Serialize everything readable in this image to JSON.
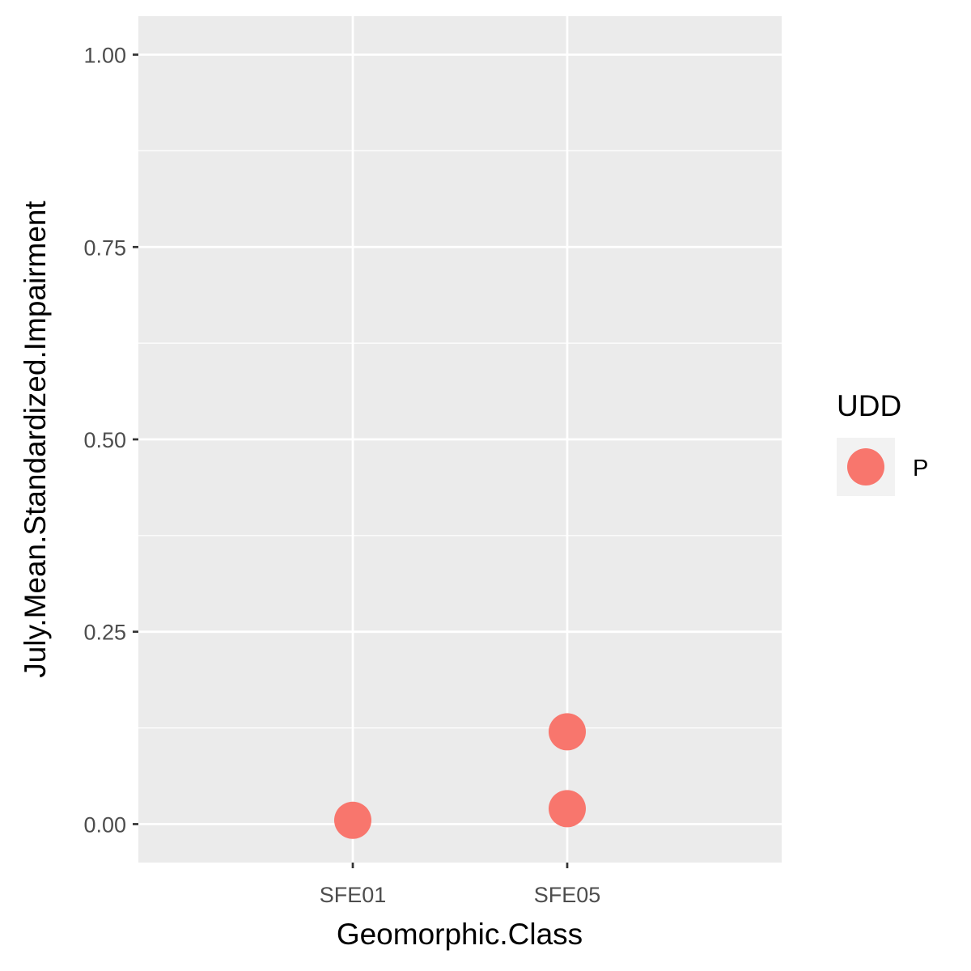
{
  "chart_data": {
    "type": "scatter",
    "title": "",
    "xlabel": "Geomorphic.Class",
    "ylabel": "July.Mean.Standardized.Impairment",
    "categories": [
      "SFE01",
      "SFE05"
    ],
    "ylim": [
      -0.05,
      1.05
    ],
    "yticks": [
      0.0,
      0.25,
      0.5,
      0.75,
      1.0
    ],
    "ytick_labels": [
      "0.00",
      "0.25",
      "0.50",
      "0.75",
      "1.00"
    ],
    "grid": true,
    "legend": {
      "title": "UDD",
      "placement": "right",
      "entries": [
        {
          "label": "P",
          "color": "#F8766D"
        }
      ]
    },
    "series": [
      {
        "name": "P",
        "color": "#F8766D",
        "points": [
          {
            "x": "SFE01",
            "y": 0.005
          },
          {
            "x": "SFE05",
            "y": 0.12
          },
          {
            "x": "SFE05",
            "y": 0.02
          }
        ]
      }
    ]
  },
  "colors": {
    "panel_background": "#EBEBEB",
    "grid": "#FFFFFF",
    "point": "#F8766D"
  }
}
